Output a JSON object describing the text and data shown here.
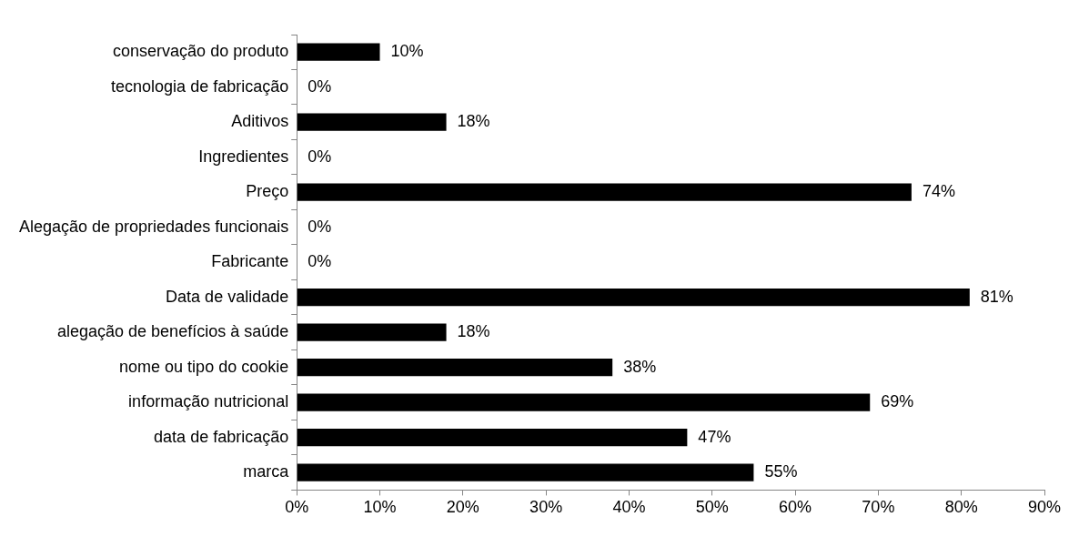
{
  "chart_data": {
    "type": "bar",
    "orientation": "horizontal",
    "categories": [
      "conservação do produto",
      "tecnologia de fabricação",
      "Aditivos",
      "Ingredientes",
      "Preço",
      "Alegação de propriedades funcionais",
      "Fabricante",
      "Data de validade",
      "alegação de benefícios à saúde",
      "nome ou tipo do cookie",
      "informação nutricional",
      "data de fabricação",
      "marca"
    ],
    "values": [
      10,
      0,
      18,
      0,
      74,
      0,
      0,
      81,
      18,
      38,
      69,
      47,
      55
    ],
    "value_labels": [
      "10%",
      "0%",
      "18%",
      "0%",
      "74%",
      "0%",
      "0%",
      "81%",
      "18%",
      "38%",
      "69%",
      "47%",
      "55%"
    ],
    "color": "#000000",
    "xlim": [
      0,
      90
    ],
    "xticks": [
      {
        "value": 0,
        "label": "0%"
      },
      {
        "value": 10,
        "label": "10%"
      },
      {
        "value": 20,
        "label": "20%"
      },
      {
        "value": 30,
        "label": "30%"
      },
      {
        "value": 40,
        "label": "40%"
      },
      {
        "value": 50,
        "label": "50%"
      },
      {
        "value": 60,
        "label": "60%"
      },
      {
        "value": 70,
        "label": "70%"
      },
      {
        "value": 80,
        "label": "80%"
      },
      {
        "value": 90,
        "label": "90%"
      }
    ],
    "grid": false,
    "legend": false
  }
}
